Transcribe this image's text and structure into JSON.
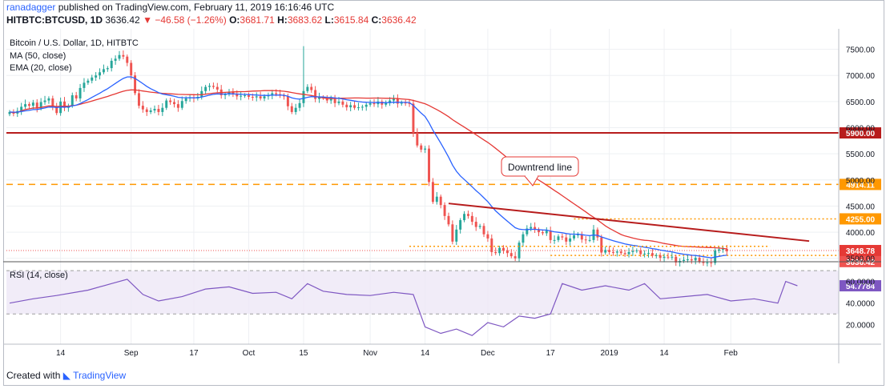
{
  "header": {
    "user": "ranadagger",
    "published_text": "published on TradingView.com, February 11, 2019 16:16:46 UTC",
    "symbol": "HITBTC:BTCUSD, 1D",
    "last": "3636.42",
    "change": "−46.58 (−1.26%)",
    "o_label": "O:",
    "o_value": "3681.71",
    "h_label": "H:",
    "h_value": "3683.62",
    "l_label": "L:",
    "l_value": "3615.84",
    "c_label": "C:",
    "c_value": "3636.42"
  },
  "legend": {
    "title": "Bitcoin / U.S. Dollar, 1D, HITBTC",
    "ma": "MA (50, close)",
    "ema": "EMA (20, close)",
    "rsi": "RSI (14, close)"
  },
  "annotation": {
    "downtrend": "Downtrend line"
  },
  "footer": {
    "created_with": "Created with",
    "brand": "TradingView"
  },
  "colors": {
    "up": "#26a69a",
    "down": "#ef5350",
    "ma50": "#e53935",
    "ema20": "#2962ff",
    "level": "#b71c1c",
    "dashed": "#ff9800",
    "rsi": "#7e57c2"
  },
  "chart_data": [
    {
      "type": "candlestick",
      "title": "Bitcoin / U.S. Dollar, 1D, HITBTC",
      "y_ticks": [
        "7500.00",
        "7000.00",
        "6500.00",
        "6000.00",
        "5500.00",
        "5000.00",
        "4500.00",
        "4000.00",
        "3500.00"
      ],
      "y_range": [
        3450,
        7800
      ],
      "x_ticks": [
        "14",
        "Sep",
        "17",
        "Oct",
        "15",
        "Nov",
        "14",
        "Dec",
        "17",
        "2019",
        "14",
        "Feb"
      ],
      "x_tick_days": [
        13,
        31,
        47,
        61,
        75,
        92,
        106,
        122,
        138,
        153,
        167,
        184
      ],
      "horizontal_levels": [
        {
          "value": 5900,
          "label": "5900.00",
          "style": "solid"
        },
        {
          "value": 4914.11,
          "label": "4914.11",
          "style": "dashed"
        },
        {
          "value": 4255,
          "label": "4255.00",
          "style": "dotted"
        },
        {
          "value": 3555.27,
          "label": "3555.27",
          "style": "dotted"
        }
      ],
      "price_labels": [
        {
          "value": 3648.78,
          "label": "3648.78",
          "role": "ema"
        },
        {
          "value": 3636.42,
          "label": "3636.42",
          "role": "last"
        }
      ],
      "trendline": {
        "from": [
          112,
          4550
        ],
        "to": [
          204,
          3830
        ]
      },
      "dashed_segment": {
        "from": [
          102,
          3730
        ],
        "to": [
          194,
          3730
        ]
      },
      "candles_daily_close": [
        6300,
        6270,
        6320,
        6400,
        6450,
        6420,
        6480,
        6370,
        6490,
        6520,
        6560,
        6410,
        6280,
        6500,
        6380,
        6420,
        6620,
        6560,
        6760,
        6860,
        6900,
        6960,
        7000,
        7060,
        7120,
        7140,
        7280,
        7320,
        7390,
        7360,
        7240,
        7000,
        6660,
        6420,
        6350,
        6300,
        6330,
        6360,
        6300,
        6380,
        6520,
        6490,
        6450,
        6380,
        6510,
        6560,
        6580,
        6560,
        6590,
        6700,
        6780,
        6800,
        6780,
        6730,
        6620,
        6640,
        6690,
        6640,
        6600,
        6610,
        6620,
        6590,
        6580,
        6600,
        6560,
        6600,
        6620,
        6660,
        6640,
        6620,
        6600,
        6410,
        6300,
        6380,
        6470,
        6700,
        6780,
        6720,
        6550,
        6580,
        6570,
        6520,
        6550,
        6470,
        6500,
        6440,
        6390,
        6430,
        6380,
        6390,
        6400,
        6440,
        6470,
        6450,
        6500,
        6440,
        6470,
        6520,
        6550,
        6460,
        6480,
        6470,
        6460,
        5900,
        5660,
        5580,
        5600,
        4960,
        4580,
        4680,
        4520,
        4310,
        4150,
        3820,
        4050,
        4230,
        4350,
        4310,
        4200,
        4100,
        4120,
        3960,
        3880,
        3620,
        3600,
        3700,
        3650,
        3600,
        3540,
        3500,
        3800,
        3960,
        4070,
        4100,
        4050,
        4000,
        3980,
        4030,
        3850,
        3850,
        3920,
        3900,
        3820,
        3880,
        3940,
        3960,
        3860,
        3850,
        3850,
        4050,
        3900,
        3610,
        3660,
        3620,
        3610,
        3630,
        3600,
        3580,
        3620,
        3640,
        3650,
        3580,
        3590,
        3600,
        3550,
        3560,
        3510,
        3530,
        3520,
        3530,
        3420,
        3450,
        3470,
        3480,
        3460,
        3510,
        3440,
        3410,
        3420,
        3410,
        3650,
        3670,
        3680,
        3636
      ],
      "series": [
        {
          "name": "MA (50, close)",
          "kind": "ma50"
        },
        {
          "name": "EMA (20, close)",
          "kind": "ema20"
        }
      ]
    },
    {
      "type": "line",
      "title": "RSI (14, close)",
      "y_ticks": [
        "60.0000",
        "40.0000",
        "20.0000"
      ],
      "y_range": [
        5,
        76
      ],
      "band": [
        30,
        70
      ],
      "last_label": "54.7784",
      "values_sampled": [
        {
          "day": 0,
          "v": 40
        },
        {
          "day": 6,
          "v": 44
        },
        {
          "day": 12,
          "v": 47
        },
        {
          "day": 20,
          "v": 52
        },
        {
          "day": 26,
          "v": 58
        },
        {
          "day": 30,
          "v": 62
        },
        {
          "day": 34,
          "v": 48
        },
        {
          "day": 38,
          "v": 42
        },
        {
          "day": 44,
          "v": 46
        },
        {
          "day": 50,
          "v": 53
        },
        {
          "day": 56,
          "v": 55
        },
        {
          "day": 62,
          "v": 49
        },
        {
          "day": 68,
          "v": 50
        },
        {
          "day": 72,
          "v": 44
        },
        {
          "day": 76,
          "v": 58
        },
        {
          "day": 80,
          "v": 51
        },
        {
          "day": 86,
          "v": 48
        },
        {
          "day": 92,
          "v": 47
        },
        {
          "day": 98,
          "v": 50
        },
        {
          "day": 103,
          "v": 48
        },
        {
          "day": 106,
          "v": 18
        },
        {
          "day": 110,
          "v": 12
        },
        {
          "day": 114,
          "v": 16
        },
        {
          "day": 118,
          "v": 10
        },
        {
          "day": 122,
          "v": 22
        },
        {
          "day": 126,
          "v": 18
        },
        {
          "day": 130,
          "v": 28
        },
        {
          "day": 134,
          "v": 26
        },
        {
          "day": 138,
          "v": 30
        },
        {
          "day": 141,
          "v": 58
        },
        {
          "day": 146,
          "v": 52
        },
        {
          "day": 152,
          "v": 56
        },
        {
          "day": 158,
          "v": 52
        },
        {
          "day": 162,
          "v": 58
        },
        {
          "day": 166,
          "v": 44
        },
        {
          "day": 172,
          "v": 46
        },
        {
          "day": 178,
          "v": 48
        },
        {
          "day": 184,
          "v": 42
        },
        {
          "day": 190,
          "v": 44
        },
        {
          "day": 196,
          "v": 40
        },
        {
          "day": 198,
          "v": 60
        },
        {
          "day": 201,
          "v": 56
        }
      ]
    }
  ]
}
